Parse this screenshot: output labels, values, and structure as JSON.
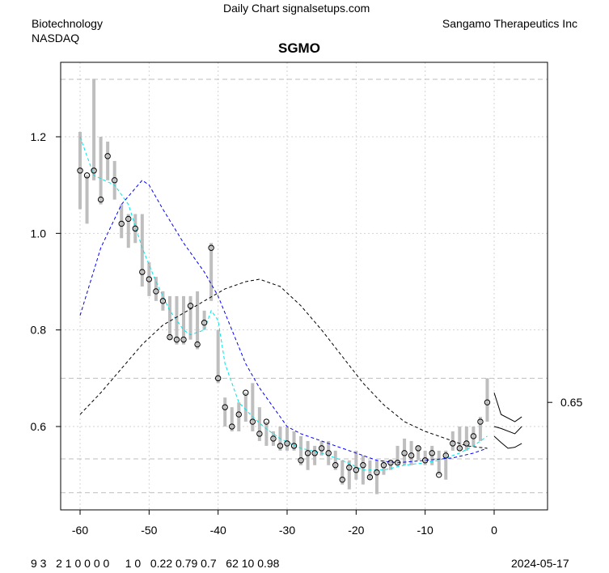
{
  "header": {
    "source": "Daily Chart signalsetups.com",
    "sector": "Biotechnology",
    "exchange": "NASDAQ",
    "company": "Sangamo Therapeutics Inc",
    "date": "2024-05-17",
    "footer_numbers": "9 3   2 1 0 0 0 0     1 0   0.22 0.79 0.7   62 10 0.98"
  },
  "chart_data": {
    "type": "candlestick-line",
    "title": "SGMO",
    "xlim": [
      -63,
      8
    ],
    "ylim": [
      0.44,
      1.37
    ],
    "x_ticks": [
      -60,
      -50,
      -40,
      -30,
      -20,
      -10,
      0
    ],
    "y_ticks": [
      0.6,
      0.8,
      1.0,
      1.2
    ],
    "right_ticks": [
      0.65
    ],
    "hlines": [
      1.319,
      0.7,
      0.533,
      0.463
    ],
    "grid": true,
    "colors": {
      "bars": "#bebebe",
      "short_ma": "#00e5e5",
      "mid_ma": "#0000ff",
      "long_ma": "#000000",
      "ref": "#bebebe"
    },
    "bars": {
      "x": [
        -60,
        -59,
        -58,
        -57,
        -56,
        -55,
        -54,
        -53,
        -52,
        -51,
        -50,
        -49,
        -48,
        -47,
        -46,
        -45,
        -44,
        -43,
        -42,
        -41,
        -40,
        -39,
        -38,
        -37,
        -36,
        -35,
        -34,
        -33,
        -32,
        -31,
        -30,
        -29,
        -28,
        -27,
        -26,
        -25,
        -24,
        -23,
        -22,
        -21,
        -20,
        -19,
        -18,
        -17,
        -16,
        -15,
        -14,
        -13,
        -12,
        -11,
        -10,
        -9,
        -8,
        -7,
        -6,
        -5,
        -4,
        -3,
        -2,
        -1
      ],
      "close": [
        1.13,
        1.12,
        1.13,
        1.07,
        1.16,
        1.11,
        1.02,
        1.03,
        1.01,
        0.92,
        0.905,
        0.88,
        0.86,
        0.785,
        0.78,
        0.78,
        0.85,
        0.77,
        0.815,
        0.97,
        0.7,
        0.64,
        0.6,
        0.625,
        0.67,
        0.61,
        0.585,
        0.61,
        0.575,
        0.56,
        0.565,
        0.56,
        0.53,
        0.545,
        0.545,
        0.555,
        0.545,
        0.52,
        0.49,
        0.515,
        0.51,
        0.52,
        0.495,
        0.505,
        0.52,
        0.525,
        0.525,
        0.545,
        0.54,
        0.555,
        0.53,
        0.545,
        0.5,
        0.54,
        0.565,
        0.555,
        0.565,
        0.58,
        0.61,
        0.65
      ],
      "high": [
        1.21,
        1.12,
        1.32,
        1.2,
        1.19,
        1.15,
        1.06,
        1.04,
        1.04,
        1.04,
        0.94,
        0.91,
        0.88,
        0.87,
        0.87,
        0.87,
        0.87,
        0.88,
        0.84,
        0.98,
        0.8,
        0.66,
        0.64,
        0.65,
        0.67,
        0.69,
        0.64,
        0.61,
        0.59,
        0.6,
        0.6,
        0.59,
        0.58,
        0.57,
        0.56,
        0.57,
        0.57,
        0.55,
        0.53,
        0.53,
        0.55,
        0.54,
        0.53,
        0.53,
        0.53,
        0.53,
        0.56,
        0.575,
        0.57,
        0.56,
        0.55,
        0.56,
        0.55,
        0.55,
        0.59,
        0.6,
        0.6,
        0.6,
        0.62,
        0.7
      ],
      "low": [
        1.05,
        1.02,
        1.11,
        1.06,
        1.11,
        1.07,
        0.99,
        0.97,
        0.98,
        0.89,
        0.87,
        0.86,
        0.84,
        0.78,
        0.77,
        0.77,
        0.78,
        0.76,
        0.8,
        0.86,
        0.69,
        0.6,
        0.59,
        0.59,
        0.61,
        0.59,
        0.57,
        0.56,
        0.56,
        0.55,
        0.55,
        0.55,
        0.52,
        0.51,
        0.52,
        0.54,
        0.52,
        0.51,
        0.48,
        0.47,
        0.49,
        0.48,
        0.49,
        0.46,
        0.5,
        0.51,
        0.52,
        0.52,
        0.52,
        0.53,
        0.52,
        0.52,
        0.5,
        0.49,
        0.55,
        0.55,
        0.55,
        0.56,
        0.57,
        0.61
      ]
    },
    "series": [
      {
        "name": "short_ma",
        "style": "dashed",
        "x": [
          -60,
          -58,
          -55,
          -53,
          -51,
          -49,
          -47,
          -45,
          -44,
          -42,
          -41,
          -40,
          -39,
          -37,
          -35,
          -33,
          -31,
          -28,
          -25,
          -22,
          -19,
          -16,
          -13,
          -10,
          -8,
          -5,
          -3,
          -1
        ],
        "y": [
          1.2,
          1.12,
          1.1,
          1.06,
          0.97,
          0.9,
          0.84,
          0.8,
          0.79,
          0.8,
          0.84,
          0.82,
          0.73,
          0.65,
          0.62,
          0.595,
          0.575,
          0.555,
          0.545,
          0.53,
          0.51,
          0.51,
          0.52,
          0.525,
          0.53,
          0.545,
          0.56,
          0.58
        ]
      },
      {
        "name": "mid_ma",
        "style": "dashed",
        "x": [
          -60,
          -57,
          -54,
          -51,
          -50,
          -48,
          -45,
          -42,
          -40,
          -38,
          -36,
          -34,
          -32,
          -30,
          -28,
          -25,
          -22,
          -20,
          -17,
          -14,
          -10,
          -6,
          -3,
          -1
        ],
        "y": [
          0.83,
          0.97,
          1.06,
          1.11,
          1.1,
          1.05,
          0.98,
          0.92,
          0.87,
          0.8,
          0.73,
          0.68,
          0.64,
          0.6,
          0.585,
          0.57,
          0.555,
          0.545,
          0.53,
          0.525,
          0.53,
          0.535,
          0.545,
          0.555
        ]
      },
      {
        "name": "long_ma",
        "style": "dashed",
        "x": [
          -60,
          -57,
          -54,
          -51,
          -48,
          -45,
          -42,
          -39,
          -36,
          -34,
          -31,
          -28,
          -25,
          -22,
          -19,
          -16,
          -13,
          -10,
          -7,
          -4,
          -1
        ],
        "y": [
          0.625,
          0.67,
          0.72,
          0.77,
          0.81,
          0.835,
          0.86,
          0.885,
          0.9,
          0.905,
          0.89,
          0.85,
          0.8,
          0.745,
          0.69,
          0.645,
          0.61,
          0.59,
          0.575,
          0.56,
          0.555
        ]
      },
      {
        "name": "proj_high",
        "style": "solid",
        "x": [
          0,
          1,
          3,
          4
        ],
        "y": [
          0.67,
          0.625,
          0.61,
          0.62
        ]
      },
      {
        "name": "proj_mid",
        "style": "solid",
        "x": [
          0,
          1,
          3,
          4
        ],
        "y": [
          0.6,
          0.596,
          0.585,
          0.6
        ]
      },
      {
        "name": "proj_low",
        "style": "solid",
        "x": [
          0,
          1,
          2,
          3,
          4
        ],
        "y": [
          0.58,
          0.567,
          0.555,
          0.557,
          0.565
        ]
      }
    ]
  }
}
